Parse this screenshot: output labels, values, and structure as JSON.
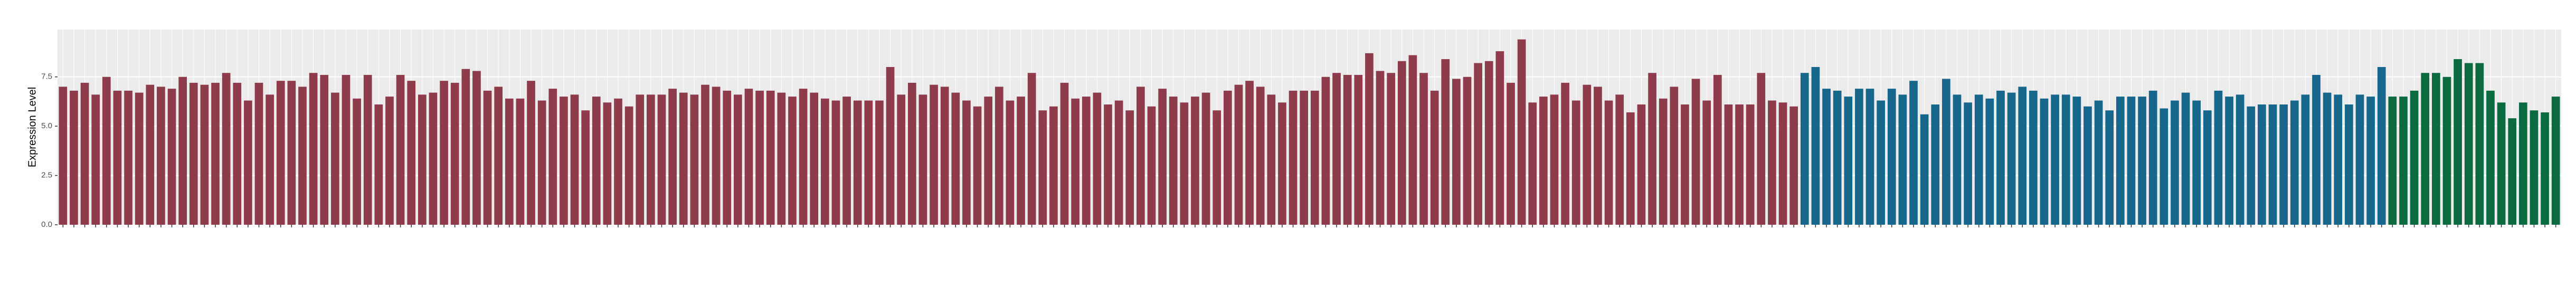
{
  "chart_data": {
    "type": "bar",
    "y_label": "Expression Level",
    "ylim": [
      0,
      9.9
    ],
    "yticks": [
      {
        "value": 0,
        "label": "0.0"
      },
      2.5,
      {
        "value": 5,
        "label": "5.0"
      },
      7.5
    ],
    "grid": true,
    "categories": [
      null,
      null,
      null,
      null,
      null,
      null,
      null,
      null,
      null,
      null,
      null,
      null,
      null,
      null,
      null,
      null,
      null,
      null,
      null,
      null,
      null,
      null,
      null,
      null,
      null,
      null,
      null,
      null,
      null,
      null,
      null,
      null,
      null,
      null,
      null,
      null,
      null,
      null,
      null,
      null,
      null,
      null,
      null,
      null,
      null,
      null,
      null,
      null,
      null,
      null,
      null,
      null,
      null,
      null,
      null,
      null,
      null,
      null,
      null,
      null,
      null,
      null,
      null,
      null,
      null,
      null,
      null,
      null,
      null,
      null,
      null,
      null,
      null,
      null,
      null,
      null,
      null,
      null,
      null,
      null,
      null,
      null,
      null,
      null,
      null,
      null,
      null,
      null,
      null,
      null,
      null,
      null,
      null,
      null,
      null,
      null,
      null,
      null,
      null,
      null,
      null,
      null,
      null,
      null,
      null,
      null,
      null,
      null,
      null,
      null,
      null,
      null,
      null,
      null,
      null,
      null,
      null,
      null,
      null,
      null,
      null,
      null,
      null,
      null,
      null,
      null,
      null,
      null,
      null,
      null,
      null,
      null,
      null,
      null,
      null,
      null,
      null,
      null,
      null,
      null,
      null,
      null,
      null,
      null,
      null,
      null,
      null,
      null,
      null,
      null,
      null,
      null,
      null,
      null,
      null,
      null,
      null,
      null,
      null,
      null,
      null,
      null,
      null,
      null,
      null,
      null,
      null,
      null,
      null,
      null,
      null,
      null,
      null,
      null,
      null,
      null,
      null,
      null,
      null,
      null,
      null,
      null,
      null,
      null,
      null,
      null,
      null,
      null,
      null,
      null,
      null,
      null,
      null,
      null,
      null,
      null,
      null,
      null,
      null,
      null,
      null,
      null,
      null,
      null,
      null,
      null,
      null,
      null,
      null,
      null,
      null,
      null,
      null,
      null,
      null,
      null,
      null,
      null,
      null,
      null,
      null,
      null,
      null,
      null,
      null,
      null,
      null,
      null,
      null,
      null
    ],
    "values": [
      7.0,
      6.8,
      7.2,
      6.6,
      7.5,
      6.8,
      6.8,
      6.7,
      7.1,
      7.0,
      6.9,
      7.5,
      7.2,
      7.1,
      7.2,
      7.7,
      7.2,
      6.3,
      7.2,
      6.6,
      7.3,
      7.3,
      7.0,
      7.7,
      7.6,
      6.7,
      7.6,
      6.4,
      7.6,
      6.1,
      6.5,
      7.6,
      7.3,
      6.6,
      6.7,
      7.3,
      7.2,
      7.9,
      7.8,
      6.8,
      7.0,
      6.4,
      6.4,
      7.3,
      6.3,
      6.9,
      6.5,
      6.6,
      5.8,
      6.5,
      6.2,
      6.4,
      6.0,
      6.6,
      6.6,
      6.6,
      6.9,
      6.7,
      6.6,
      7.1,
      7.0,
      6.8,
      6.6,
      6.9,
      6.8,
      6.8,
      6.7,
      6.5,
      6.9,
      6.7,
      6.4,
      6.3,
      6.5,
      6.3,
      6.3,
      6.3,
      8.0,
      6.6,
      7.2,
      6.6,
      7.1,
      7.0,
      6.7,
      6.3,
      6.0,
      6.5,
      7.0,
      6.3,
      6.5,
      7.7,
      5.8,
      6.0,
      7.2,
      6.4,
      6.5,
      6.7,
      6.1,
      6.3,
      5.8,
      7.0,
      6.0,
      6.9,
      6.5,
      6.2,
      6.5,
      6.7,
      5.8,
      6.8,
      7.1,
      7.3,
      7.0,
      6.6,
      6.2,
      6.8,
      6.8,
      6.8,
      7.5,
      7.7,
      7.6,
      7.6,
      8.7,
      7.8,
      7.7,
      8.3,
      8.6,
      7.7,
      6.8,
      8.4,
      7.4,
      7.5,
      8.2,
      8.3,
      8.8,
      7.2,
      9.4,
      6.2,
      6.5,
      6.6,
      7.2,
      6.3,
      7.1,
      7.0,
      6.3,
      6.6,
      5.7,
      6.1,
      7.7,
      6.4,
      7.0,
      6.1,
      7.4,
      6.3,
      7.6,
      6.1,
      6.1,
      6.1,
      7.7,
      6.3,
      6.2,
      6.0,
      7.7,
      8.0,
      6.9,
      6.8,
      6.5,
      6.9,
      6.9,
      6.3,
      6.9,
      6.6,
      7.3,
      5.6,
      6.1,
      7.4,
      6.6,
      6.2,
      6.6,
      6.4,
      6.8,
      6.7,
      7.0,
      6.8,
      6.4,
      6.6,
      6.6,
      6.5,
      6.0,
      6.3,
      5.8,
      6.5,
      6.5,
      6.5,
      6.8,
      5.9,
      6.3,
      6.7,
      6.3,
      5.8,
      6.8,
      6.5,
      6.6,
      6.0,
      6.1,
      6.1,
      6.1,
      6.3,
      6.6,
      7.6,
      6.7,
      6.6,
      6.1,
      6.6,
      6.5,
      8.0,
      6.5,
      6.5,
      6.8,
      7.7,
      7.7,
      7.5,
      8.4,
      8.2,
      8.2,
      6.8,
      6.2,
      5.4,
      6.2,
      5.8,
      5.7,
      6.5
    ],
    "colors": [
      "#8e3b4b",
      "#8e3b4b",
      "#8e3b4b",
      "#8e3b4b",
      "#8e3b4b",
      "#8e3b4b",
      "#8e3b4b",
      "#8e3b4b",
      "#8e3b4b",
      "#8e3b4b",
      "#8e3b4b",
      "#8e3b4b",
      "#8e3b4b",
      "#8e3b4b",
      "#8e3b4b",
      "#8e3b4b",
      "#8e3b4b",
      "#8e3b4b",
      "#8e3b4b",
      "#8e3b4b",
      "#8e3b4b",
      "#8e3b4b",
      "#8e3b4b",
      "#8e3b4b",
      "#8e3b4b",
      "#8e3b4b",
      "#8e3b4b",
      "#8e3b4b",
      "#8e3b4b",
      "#8e3b4b",
      "#8e3b4b",
      "#8e3b4b",
      "#8e3b4b",
      "#8e3b4b",
      "#8e3b4b",
      "#8e3b4b",
      "#8e3b4b",
      "#8e3b4b",
      "#8e3b4b",
      "#8e3b4b",
      "#8e3b4b",
      "#8e3b4b",
      "#8e3b4b",
      "#8e3b4b",
      "#8e3b4b",
      "#8e3b4b",
      "#8e3b4b",
      "#8e3b4b",
      "#8e3b4b",
      "#8e3b4b",
      "#8e3b4b",
      "#8e3b4b",
      "#8e3b4b",
      "#8e3b4b",
      "#8e3b4b",
      "#8e3b4b",
      "#8e3b4b",
      "#8e3b4b",
      "#8e3b4b",
      "#8e3b4b",
      "#8e3b4b",
      "#8e3b4b",
      "#8e3b4b",
      "#8e3b4b",
      "#8e3b4b",
      "#8e3b4b",
      "#8e3b4b",
      "#8e3b4b",
      "#8e3b4b",
      "#8e3b4b",
      "#8e3b4b",
      "#8e3b4b",
      "#8e3b4b",
      "#8e3b4b",
      "#8e3b4b",
      "#8e3b4b",
      "#8e3b4b",
      "#8e3b4b",
      "#8e3b4b",
      "#8e3b4b",
      "#8e3b4b",
      "#8e3b4b",
      "#8e3b4b",
      "#8e3b4b",
      "#8e3b4b",
      "#8e3b4b",
      "#8e3b4b",
      "#8e3b4b",
      "#8e3b4b",
      "#8e3b4b",
      "#8e3b4b",
      "#8e3b4b",
      "#8e3b4b",
      "#8e3b4b",
      "#8e3b4b",
      "#8e3b4b",
      "#8e3b4b",
      "#8e3b4b",
      "#8e3b4b",
      "#8e3b4b",
      "#8e3b4b",
      "#8e3b4b",
      "#8e3b4b",
      "#8e3b4b",
      "#8e3b4b",
      "#8e3b4b",
      "#8e3b4b",
      "#8e3b4b",
      "#8e3b4b",
      "#8e3b4b",
      "#8e3b4b",
      "#8e3b4b",
      "#8e3b4b",
      "#8e3b4b",
      "#8e3b4b",
      "#8e3b4b",
      "#8e3b4b",
      "#8e3b4b",
      "#8e3b4b",
      "#8e3b4b",
      "#8e3b4b",
      "#8e3b4b",
      "#8e3b4b",
      "#8e3b4b",
      "#8e3b4b",
      "#8e3b4b",
      "#8e3b4b",
      "#8e3b4b",
      "#8e3b4b",
      "#8e3b4b",
      "#8e3b4b",
      "#8e3b4b",
      "#8e3b4b",
      "#8e3b4b",
      "#8e3b4b",
      "#8e3b4b",
      "#8e3b4b",
      "#8e3b4b",
      "#8e3b4b",
      "#8e3b4b",
      "#8e3b4b",
      "#8e3b4b",
      "#8e3b4b",
      "#8e3b4b",
      "#8e3b4b",
      "#8e3b4b",
      "#8e3b4b",
      "#8e3b4b",
      "#8e3b4b",
      "#8e3b4b",
      "#8e3b4b",
      "#8e3b4b",
      "#8e3b4b",
      "#8e3b4b",
      "#8e3b4b",
      "#8e3b4b",
      "#8e3b4b",
      "#8e3b4b",
      "#8e3b4b",
      "#8e3b4b",
      "#17668b",
      "#17668b",
      "#17668b",
      "#17668b",
      "#17668b",
      "#17668b",
      "#17668b",
      "#17668b",
      "#17668b",
      "#17668b",
      "#17668b",
      "#17668b",
      "#17668b",
      "#17668b",
      "#17668b",
      "#17668b",
      "#17668b",
      "#17668b",
      "#17668b",
      "#17668b",
      "#17668b",
      "#17668b",
      "#17668b",
      "#17668b",
      "#17668b",
      "#17668b",
      "#17668b",
      "#17668b",
      "#17668b",
      "#17668b",
      "#17668b",
      "#17668b",
      "#17668b",
      "#17668b",
      "#17668b",
      "#17668b",
      "#17668b",
      "#17668b",
      "#17668b",
      "#17668b",
      "#17668b",
      "#17668b",
      "#17668b",
      "#17668b",
      "#17668b",
      "#17668b",
      "#17668b",
      "#17668b",
      "#17668b",
      "#17668b",
      "#17668b",
      "#17668b",
      "#17668b",
      "#17668b",
      "#0c6a40",
      "#0c6a40",
      "#0c6a40",
      "#0c6a40",
      "#0c6a40",
      "#0c6a40",
      "#0c6a40",
      "#0c6a40",
      "#0c6a40",
      "#0c6a40",
      "#0c6a40",
      "#0c6a40",
      "#0c6a40",
      "#0c6a40",
      "#0c6a40",
      "#0c6a40"
    ]
  }
}
